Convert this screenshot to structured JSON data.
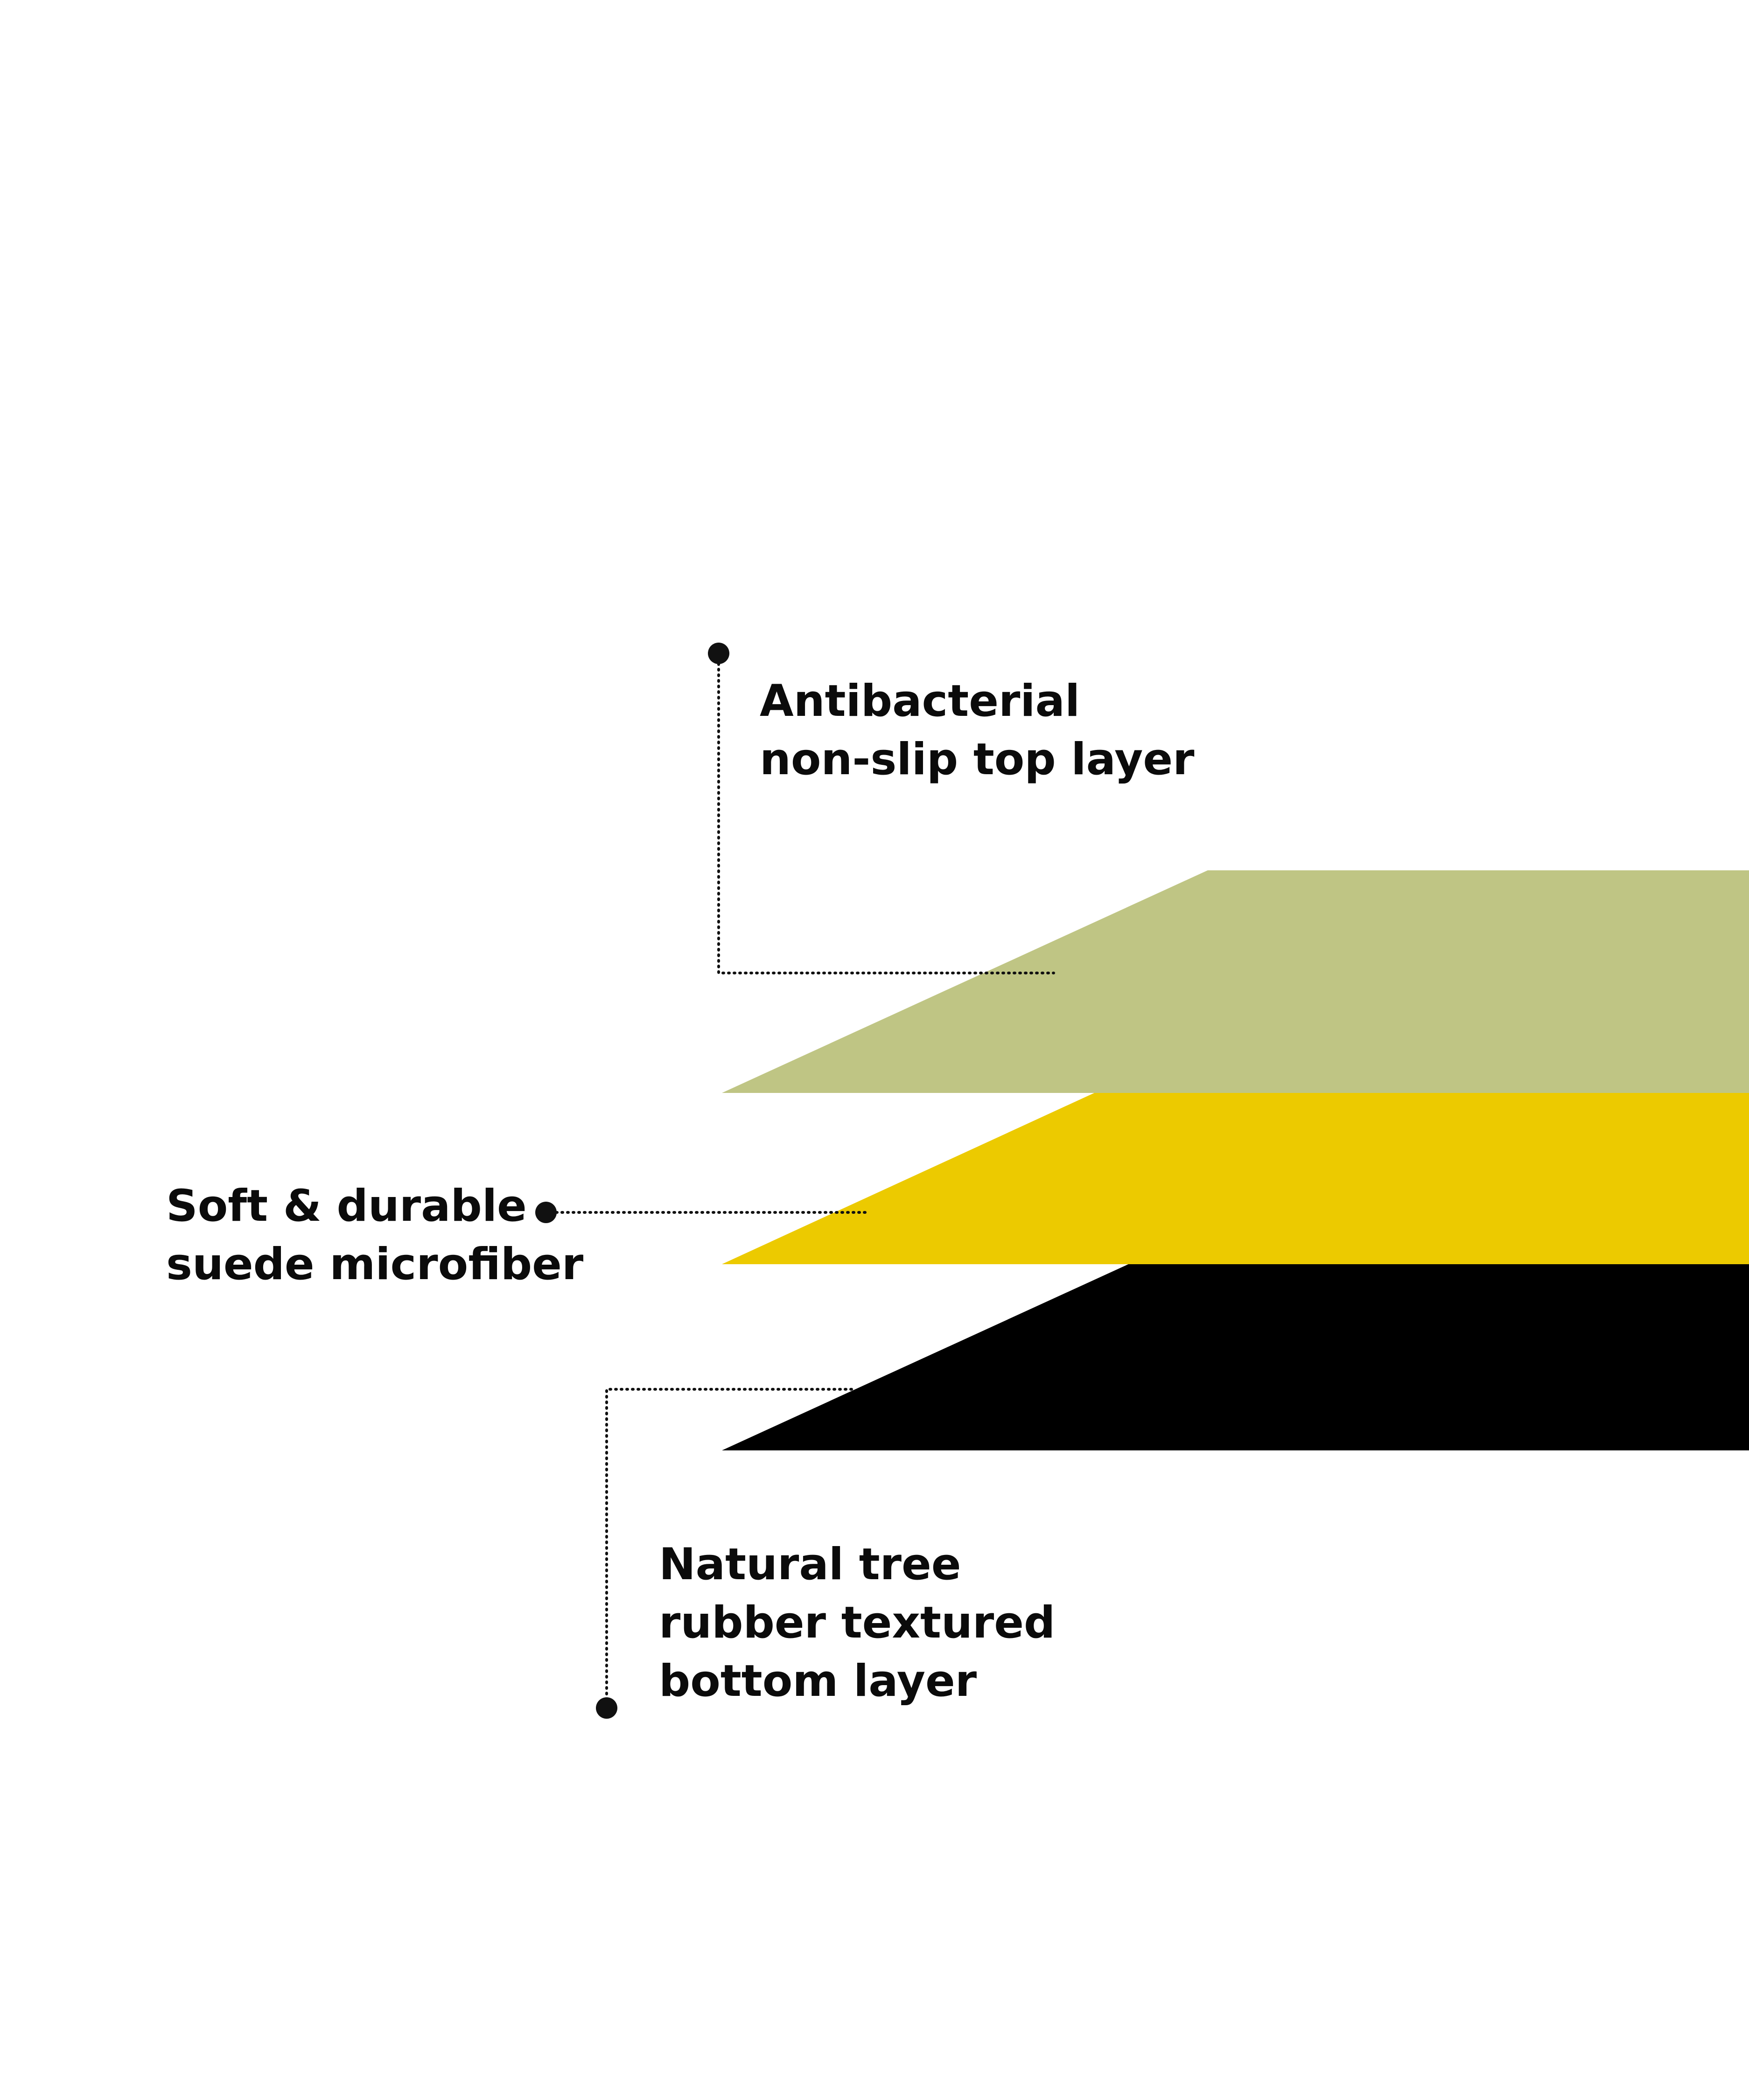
{
  "layers": [
    {
      "id": "top",
      "name": "Antibacterial non-slip top layer",
      "label_lines": [
        "Antibacterial",
        "non-slip top layer"
      ],
      "color": "#bfc584"
    },
    {
      "id": "middle",
      "name": "Soft & durable suede microfiber",
      "label_lines": [
        "Soft & durable",
        "suede microfiber"
      ],
      "color": "#ecca00"
    },
    {
      "id": "bottom",
      "name": "Natural tree rubber textured bottom layer",
      "label_lines": [
        "Natural tree",
        "rubber textured",
        "bottom layer"
      ],
      "color": "#000000"
    }
  ],
  "style": {
    "text_color": "#0b0b0b",
    "leader_color": "#111111",
    "background": "#ffffff"
  }
}
